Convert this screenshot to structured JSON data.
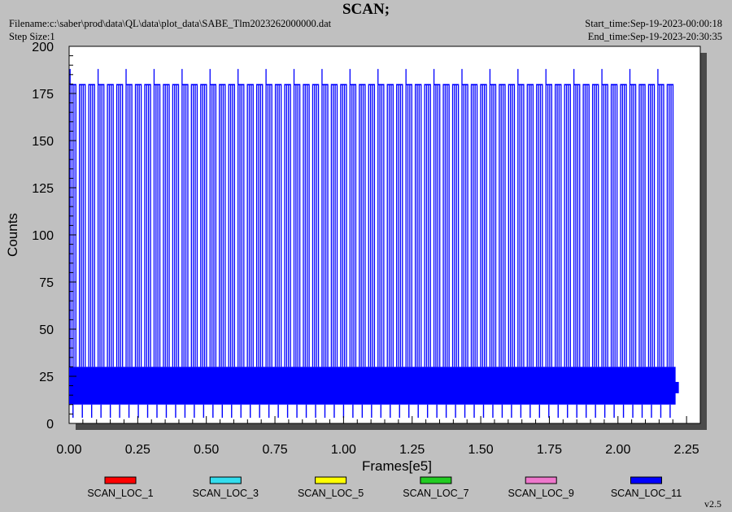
{
  "header": {
    "title": "SCAN;",
    "filename": "Filename:c:\\saber\\prod\\data\\QL\\data\\plot_data\\SABE_Tlm2023262000000.dat",
    "step_size": "Step Size:1",
    "start_time": "Start_time:Sep-19-2023-00:00:18",
    "end_time": "End_time:Sep-19-2023-20:30:35"
  },
  "version": "v2.5",
  "colors": {
    "page_bg": "#c0c0c0",
    "plot_bg": "#ffffff",
    "shadow": "#4a4a4a"
  },
  "chart_data": {
    "type": "line",
    "title": "SCAN;",
    "xlabel": "Frames[e5]",
    "ylabel": "Counts",
    "xlim": [
      0,
      2.3
    ],
    "ylim": [
      0,
      200
    ],
    "xticks": [
      0.0,
      0.25,
      0.5,
      0.75,
      1.0,
      1.25,
      1.5,
      1.75,
      2.0,
      2.25
    ],
    "xtick_labels": [
      "0.00",
      "0.25",
      "0.50",
      "0.75",
      "1.00",
      "1.25",
      "1.50",
      "1.75",
      "2.00",
      "2.25"
    ],
    "yticks": [
      0,
      25,
      50,
      75,
      100,
      125,
      150,
      175,
      200
    ],
    "ytick_labels": [
      "0",
      "25",
      "50",
      "75",
      "100",
      "125",
      "150",
      "175",
      "200"
    ],
    "grid": false,
    "legend_position": "bottom",
    "series": [
      {
        "name": "SCAN_LOC_1",
        "color": "#ff0000"
      },
      {
        "name": "SCAN_LOC_3",
        "color": "#33ddee"
      },
      {
        "name": "SCAN_LOC_5",
        "color": "#ffff00"
      },
      {
        "name": "SCAN_LOC_7",
        "color": "#22cc22"
      },
      {
        "name": "SCAN_LOC_9",
        "color": "#ee77cc"
      },
      {
        "name": "SCAN_LOC_11",
        "color": "#0000ff",
        "x_range": [
          0.0,
          2.21
        ],
        "band_range": [
          10,
          30
        ],
        "spike_high": 180,
        "spike_high_alt": 188,
        "spike_low": 3,
        "cycle_count": 65
      }
    ]
  }
}
